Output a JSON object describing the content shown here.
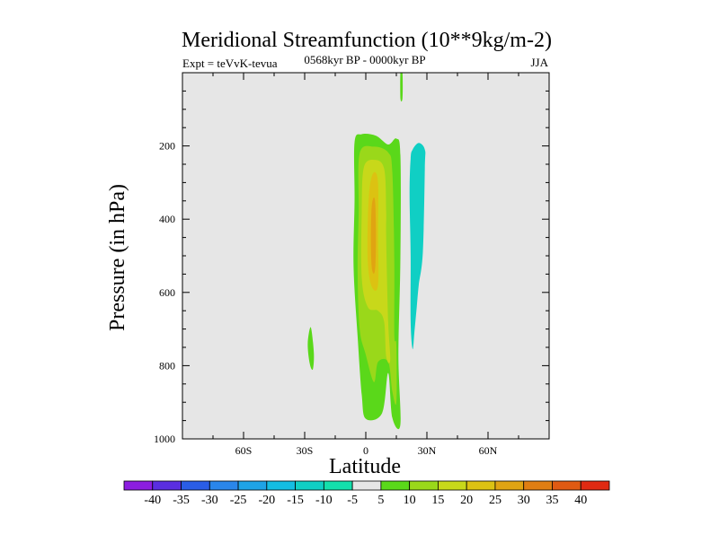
{
  "chart_data": {
    "type": "heatmap",
    "plot_style": "filled-contour",
    "title": "Meridional Streamfunction (10**9kg/m-2)",
    "left_string": "Expt = teVvK-tevua",
    "center_string": "0568kyr BP - 0000kyr BP",
    "right_string": "JJA",
    "xlabel": "Latitude",
    "ylabel": "Pressure (in hPa)",
    "xlim": [
      -90,
      90
    ],
    "ylim": [
      1000,
      0
    ],
    "y_reversed": true,
    "x_ticks": [
      {
        "value": -60,
        "label": "60S"
      },
      {
        "value": -30,
        "label": "30S"
      },
      {
        "value": 0,
        "label": "0"
      },
      {
        "value": 30,
        "label": "30N"
      },
      {
        "value": 60,
        "label": "60N"
      }
    ],
    "y_ticks": [
      {
        "value": 200,
        "label": "200"
      },
      {
        "value": 400,
        "label": "400"
      },
      {
        "value": 600,
        "label": "600"
      },
      {
        "value": 800,
        "label": "800"
      },
      {
        "value": 1000,
        "label": "1000"
      }
    ],
    "y_minor_ticks": [
      50,
      100,
      150,
      250,
      300,
      350,
      450,
      500,
      550,
      650,
      700,
      750,
      850,
      900,
      950
    ],
    "x_minor_ticks": [
      -75,
      -45,
      -15,
      15,
      45,
      75
    ],
    "background_color": "#e6e6e6",
    "colorbar": {
      "labels": [
        "-40",
        "-35",
        "-30",
        "-25",
        "-20",
        "-15",
        "-10",
        "-5",
        "5",
        "10",
        "15",
        "20",
        "25",
        "30",
        "35",
        "40"
      ],
      "colors": [
        "#8c1de0",
        "#5a2ee0",
        "#2a5de6",
        "#2a86ea",
        "#1ea3e6",
        "#14bde2",
        "#10cfc4",
        "#14e0ac",
        "#e6e6e6",
        "#5ad81a",
        "#9ad81a",
        "#c8d81a",
        "#dcc212",
        "#e0a412",
        "#e07e12",
        "#e05a12",
        "#e02a12"
      ]
    },
    "regions": [
      {
        "value": 5,
        "color": "#5ad81a",
        "points": [
          [
            -5.5,
            190
          ],
          [
            -2,
            168
          ],
          [
            5,
            172
          ],
          [
            11,
            196
          ],
          [
            15,
            180
          ],
          [
            17,
            225
          ],
          [
            17,
            505
          ],
          [
            16,
            770
          ],
          [
            17,
            960
          ],
          [
            13,
            942
          ],
          [
            11,
            820
          ],
          [
            8,
            930
          ],
          [
            0,
            945
          ],
          [
            -2,
            880
          ],
          [
            -4,
            720
          ],
          [
            -6,
            530
          ],
          [
            -5.5,
            350
          ]
        ]
      },
      {
        "value": 5,
        "color": "#5ad81a",
        "points": [
          [
            17,
            0
          ],
          [
            18,
            0
          ],
          [
            18,
            70
          ],
          [
            17,
            70
          ]
        ]
      },
      {
        "value": 5,
        "color": "#5ad81a",
        "points": [
          [
            -27,
            695
          ],
          [
            -25.5,
            765
          ],
          [
            -26,
            810
          ],
          [
            -27.5,
            795
          ],
          [
            -28.5,
            740
          ]
        ]
      },
      {
        "value": 10,
        "color": "#9ad81a",
        "points": [
          [
            -3,
            220
          ],
          [
            4,
            202
          ],
          [
            11,
            218
          ],
          [
            13,
            270
          ],
          [
            14,
            510
          ],
          [
            14,
            715
          ],
          [
            15,
            745
          ],
          [
            15,
            900
          ],
          [
            13,
            870
          ],
          [
            11,
            790
          ],
          [
            6,
            790
          ],
          [
            4,
            845
          ],
          [
            0,
            770
          ],
          [
            -3,
            700
          ],
          [
            -4,
            540
          ],
          [
            -3.5,
            380
          ]
        ]
      },
      {
        "value": 15,
        "color": "#c8d81a",
        "points": [
          [
            -1,
            260
          ],
          [
            4,
            238
          ],
          [
            9,
            262
          ],
          [
            10,
            380
          ],
          [
            10,
            450
          ],
          [
            11,
            680
          ],
          [
            12,
            785
          ],
          [
            10,
            775
          ],
          [
            9,
            680
          ],
          [
            6,
            650
          ],
          [
            1,
            640
          ],
          [
            -2,
            560
          ],
          [
            -2,
            380
          ]
        ]
      },
      {
        "value": 20,
        "color": "#dcc212",
        "points": [
          [
            2,
            310
          ],
          [
            4,
            272
          ],
          [
            6,
            300
          ],
          [
            6,
            440
          ],
          [
            6,
            580
          ],
          [
            3,
            585
          ],
          [
            1,
            520
          ],
          [
            1,
            400
          ]
        ]
      },
      {
        "value": 25,
        "color": "#e0a412",
        "points": [
          [
            3,
            360
          ],
          [
            4.5,
            348
          ],
          [
            5,
            450
          ],
          [
            4.5,
            540
          ],
          [
            3,
            535
          ],
          [
            2.5,
            450
          ]
        ]
      },
      {
        "value": -10,
        "color": "#10cfc4",
        "points": [
          [
            22,
            235
          ],
          [
            23,
            210
          ],
          [
            26,
            192
          ],
          [
            29,
            210
          ],
          [
            29,
            260
          ],
          [
            28,
            490
          ],
          [
            26,
            580
          ],
          [
            25,
            640
          ],
          [
            24,
            700
          ],
          [
            23,
            755
          ],
          [
            22,
            680
          ],
          [
            22,
            500
          ],
          [
            21.5,
            330
          ]
        ]
      }
    ]
  }
}
